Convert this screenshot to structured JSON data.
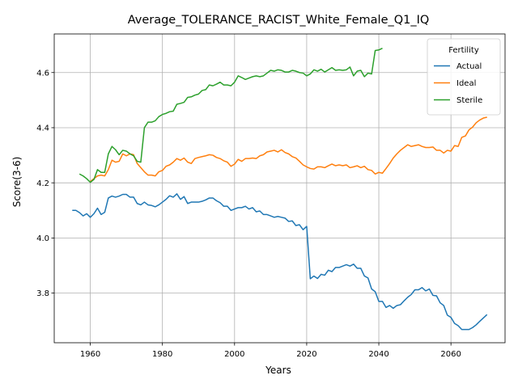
{
  "chart_data": {
    "type": "line",
    "title": "Average_TOLERANCE_RACIST_White_Female_Q1_IQ",
    "xlabel": "Years",
    "ylabel": "Score(3-6)",
    "xlim": [
      1950,
      2075
    ],
    "ylim": [
      3.62,
      4.74
    ],
    "xticks": [
      1960,
      1980,
      2000,
      2020,
      2040,
      2060
    ],
    "yticks": [
      3.8,
      4.0,
      4.2,
      4.4,
      4.6
    ],
    "grid": true,
    "legend": {
      "title": "Fertility",
      "placement": "top-right"
    },
    "series": [
      {
        "name": "Actual",
        "color": "#1f77b4",
        "x": [
          1955,
          1956,
          1957,
          1958,
          1959,
          1960,
          1961,
          1962,
          1963,
          1964,
          1965,
          1966,
          1967,
          1968,
          1969,
          1970,
          1971,
          1972,
          1973,
          1974,
          1975,
          1976,
          1977,
          1978,
          1979,
          1980,
          1981,
          1982,
          1983,
          1984,
          1985,
          1986,
          1987,
          1988,
          1989,
          1990,
          1991,
          1992,
          1993,
          1994,
          1995,
          1996,
          1997,
          1998,
          1999,
          2000,
          2001,
          2002,
          2003,
          2004,
          2005,
          2006,
          2007,
          2008,
          2009,
          2010,
          2011,
          2012,
          2013,
          2014,
          2015,
          2016,
          2017,
          2018,
          2019,
          2020,
          2021,
          2022,
          2023,
          2024,
          2025,
          2026,
          2027,
          2028,
          2029,
          2030,
          2031,
          2032,
          2033,
          2034,
          2035,
          2036,
          2037,
          2038,
          2039,
          2040,
          2041,
          2042,
          2043,
          2044,
          2045,
          2046,
          2047,
          2048,
          2049,
          2050,
          2051,
          2052,
          2053,
          2054,
          2055,
          2056,
          2057,
          2058,
          2059,
          2060,
          2061,
          2062,
          2063,
          2064,
          2065,
          2066,
          2067,
          2068,
          2069,
          2070
        ],
        "values": [
          4.1,
          4.1,
          4.092,
          4.08,
          4.088,
          4.075,
          4.088,
          4.108,
          4.085,
          4.093,
          4.145,
          4.152,
          4.148,
          4.152,
          4.158,
          4.158,
          4.148,
          4.148,
          4.125,
          4.12,
          4.13,
          4.12,
          4.118,
          4.113,
          4.12,
          4.13,
          4.14,
          4.153,
          4.148,
          4.16,
          4.14,
          4.15,
          4.125,
          4.13,
          4.13,
          4.13,
          4.133,
          4.138,
          4.145,
          4.145,
          4.135,
          4.128,
          4.115,
          4.115,
          4.1,
          4.105,
          4.11,
          4.11,
          4.115,
          4.105,
          4.11,
          4.095,
          4.098,
          4.085,
          4.085,
          4.08,
          4.075,
          4.078,
          4.075,
          4.072,
          4.06,
          4.062,
          4.045,
          4.048,
          4.03,
          4.042,
          3.852,
          3.862,
          3.853,
          3.868,
          3.865,
          3.883,
          3.878,
          3.893,
          3.893,
          3.898,
          3.903,
          3.898,
          3.905,
          3.89,
          3.89,
          3.862,
          3.855,
          3.815,
          3.805,
          3.77,
          3.77,
          3.748,
          3.755,
          3.745,
          3.755,
          3.758,
          3.772,
          3.785,
          3.795,
          3.812,
          3.812,
          3.82,
          3.808,
          3.815,
          3.792,
          3.79,
          3.765,
          3.755,
          3.72,
          3.712,
          3.69,
          3.682,
          3.668,
          3.668,
          3.668,
          3.675,
          3.685,
          3.698,
          3.71,
          3.722
        ]
      },
      {
        "name": "Ideal",
        "color": "#ff7f0e",
        "x": [
          1960,
          1961,
          1962,
          1963,
          1964,
          1965,
          1966,
          1967,
          1968,
          1969,
          1970,
          1971,
          1972,
          1973,
          1974,
          1975,
          1976,
          1977,
          1978,
          1979,
          1980,
          1981,
          1982,
          1983,
          1984,
          1985,
          1986,
          1987,
          1988,
          1989,
          1990,
          1991,
          1992,
          1993,
          1994,
          1995,
          1996,
          1997,
          1998,
          1999,
          2000,
          2001,
          2002,
          2003,
          2004,
          2005,
          2006,
          2007,
          2008,
          2009,
          2010,
          2011,
          2012,
          2013,
          2014,
          2015,
          2016,
          2017,
          2018,
          2019,
          2020,
          2021,
          2022,
          2023,
          2024,
          2025,
          2026,
          2027,
          2028,
          2029,
          2030,
          2031,
          2032,
          2033,
          2034,
          2035,
          2036,
          2037,
          2038,
          2039,
          2040,
          2041,
          2042,
          2043,
          2044,
          2045,
          2046,
          2047,
          2048,
          2049,
          2050,
          2051,
          2052,
          2053,
          2054,
          2055,
          2056,
          2057,
          2058,
          2059,
          2060,
          2061,
          2062,
          2063,
          2064,
          2065,
          2066,
          2067,
          2068,
          2069,
          2070
        ],
        "values": [
          4.205,
          4.215,
          4.225,
          4.228,
          4.225,
          4.248,
          4.282,
          4.275,
          4.278,
          4.305,
          4.298,
          4.305,
          4.302,
          4.27,
          4.255,
          4.24,
          4.228,
          4.228,
          4.225,
          4.24,
          4.245,
          4.26,
          4.265,
          4.275,
          4.288,
          4.282,
          4.29,
          4.275,
          4.27,
          4.288,
          4.292,
          4.295,
          4.298,
          4.302,
          4.3,
          4.292,
          4.288,
          4.28,
          4.275,
          4.26,
          4.268,
          4.285,
          4.278,
          4.288,
          4.288,
          4.29,
          4.288,
          4.298,
          4.302,
          4.312,
          4.315,
          4.318,
          4.312,
          4.32,
          4.31,
          4.305,
          4.295,
          4.29,
          4.278,
          4.265,
          4.258,
          4.252,
          4.25,
          4.258,
          4.258,
          4.255,
          4.262,
          4.268,
          4.262,
          4.265,
          4.262,
          4.265,
          4.255,
          4.258,
          4.262,
          4.255,
          4.26,
          4.248,
          4.245,
          4.232,
          4.238,
          4.235,
          4.252,
          4.27,
          4.29,
          4.305,
          4.318,
          4.328,
          4.338,
          4.332,
          4.335,
          4.338,
          4.332,
          4.328,
          4.328,
          4.33,
          4.318,
          4.318,
          4.308,
          4.318,
          4.315,
          4.335,
          4.332,
          4.365,
          4.37,
          4.392,
          4.402,
          4.418,
          4.428,
          4.435,
          4.438
        ]
      },
      {
        "name": "Sterile",
        "color": "#2ca02c",
        "x": [
          1957,
          1958,
          1959,
          1960,
          1961,
          1962,
          1963,
          1964,
          1965,
          1966,
          1967,
          1968,
          1969,
          1970,
          1971,
          1972,
          1973,
          1974,
          1975,
          1976,
          1977,
          1978,
          1979,
          1980,
          1981,
          1982,
          1983,
          1984,
          1985,
          1986,
          1987,
          1988,
          1989,
          1990,
          1991,
          1992,
          1993,
          1994,
          1995,
          1996,
          1997,
          1998,
          1999,
          2000,
          2001,
          2002,
          2003,
          2004,
          2005,
          2006,
          2007,
          2008,
          2009,
          2010,
          2011,
          2012,
          2013,
          2014,
          2015,
          2016,
          2017,
          2018,
          2019,
          2020,
          2021,
          2022,
          2023,
          2024,
          2025,
          2026,
          2027,
          2028,
          2029,
          2030,
          2031,
          2032,
          2033,
          2034,
          2035,
          2036,
          2037,
          2038,
          2039,
          2040,
          2041
        ],
        "values": [
          4.232,
          4.225,
          4.215,
          4.202,
          4.212,
          4.248,
          4.238,
          4.238,
          4.305,
          4.332,
          4.32,
          4.302,
          4.318,
          4.315,
          4.305,
          4.298,
          4.278,
          4.275,
          4.4,
          4.42,
          4.42,
          4.425,
          4.44,
          4.448,
          4.452,
          4.458,
          4.46,
          4.485,
          4.488,
          4.492,
          4.51,
          4.512,
          4.518,
          4.522,
          4.535,
          4.538,
          4.555,
          4.552,
          4.558,
          4.565,
          4.555,
          4.555,
          4.552,
          4.565,
          4.588,
          4.582,
          4.575,
          4.58,
          4.585,
          4.588,
          4.585,
          4.588,
          4.598,
          4.608,
          4.605,
          4.61,
          4.608,
          4.602,
          4.602,
          4.608,
          4.605,
          4.6,
          4.598,
          4.588,
          4.595,
          4.61,
          4.605,
          4.612,
          4.602,
          4.61,
          4.618,
          4.608,
          4.61,
          4.608,
          4.61,
          4.62,
          4.588,
          4.605,
          4.608,
          4.585,
          4.598,
          4.595,
          4.68,
          4.682,
          4.688
        ]
      }
    ]
  }
}
